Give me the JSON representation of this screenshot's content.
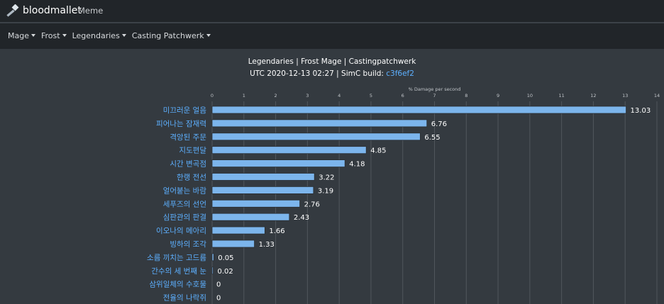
{
  "navbar": {
    "brand": "bloodmallet",
    "brand_icon": "hammer-icon",
    "link_meme": "Meme"
  },
  "menu": {
    "items": [
      "Mage",
      "Frost",
      "Legendaries",
      "Casting Patchwerk"
    ]
  },
  "header": {
    "title": "Legendaries | Frost Mage | Castingpatchwerk",
    "subtitle_prefix": "UTC 2020-12-13 02:27 | SimC build: ",
    "build_hash": "c3f6ef2"
  },
  "colors": {
    "bar": "#7cb5ec",
    "link": "#5db0ff",
    "label": "#5db0ff"
  },
  "chart_data": {
    "type": "bar",
    "orientation": "horizontal",
    "xlabel": "% Damage per second",
    "xlim": [
      0,
      14
    ],
    "xticks": [
      0,
      1,
      2,
      3,
      4,
      5,
      6,
      7,
      8,
      9,
      10,
      11,
      12,
      13,
      14
    ],
    "grid": true,
    "categories": [
      "미끄러운 얼음",
      "피어나는 잠재력",
      "격앙된 주문",
      "지도편달",
      "시간 변곡점",
      "한랭 전선",
      "얼어붙는 바람",
      "세푸즈의 선언",
      "심판관의 판결",
      "이오나의 메아리",
      "빙하의 조각",
      "소름 끼치는 고드름",
      "간수의 세 번째 눈",
      "삼위일체의 수호물",
      "전율의 나락쥐"
    ],
    "values": [
      13.03,
      6.76,
      6.55,
      4.85,
      4.18,
      3.22,
      3.19,
      2.76,
      2.43,
      1.66,
      1.33,
      0.05,
      0.02,
      0,
      0
    ],
    "value_labels": [
      "13.03",
      "6.76",
      "6.55",
      "4.85",
      "4.18",
      "3.22",
      "3.19",
      "2.76",
      "2.43",
      "1.66",
      "1.33",
      "0.05",
      "0.02",
      "0",
      "0"
    ]
  }
}
